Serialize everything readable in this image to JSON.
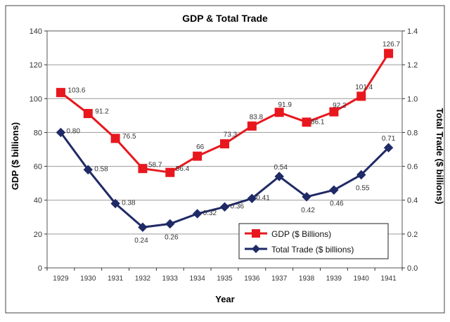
{
  "chart_data": {
    "type": "line",
    "title": "GDP & Total Trade",
    "xlabel": "Year",
    "ylabel": "GDP ($ billions)",
    "y2label": "Total Trade ($ billions)",
    "categories": [
      "1929",
      "1930",
      "1931",
      "1932",
      "1933",
      "1934",
      "1935",
      "1936",
      "1937",
      "1938",
      "1939",
      "1940",
      "1941"
    ],
    "ylim": [
      0,
      140
    ],
    "yticks": [
      "0",
      "20",
      "40",
      "60",
      "80",
      "100",
      "120",
      "140"
    ],
    "y2lim": [
      0,
      1.4
    ],
    "y2ticks": [
      "0.0",
      "0.2",
      "0.4",
      "0.6",
      "0.8",
      "1.0",
      "1.2",
      "1.4"
    ],
    "grid": "horizontal",
    "legend_position": "bottom-right",
    "series": [
      {
        "name": "GDP ($ Billions)",
        "axis": "left",
        "color": "#e8171e",
        "marker": "square",
        "values": [
          103.6,
          91.2,
          76.5,
          58.7,
          56.4,
          66,
          73.3,
          83.8,
          91.9,
          86.1,
          92.2,
          101.4,
          126.7
        ],
        "labels": [
          "103.6",
          "91.2",
          "76.5",
          "58.7",
          "56.4",
          "66",
          "73.3",
          "83.8",
          "91.9",
          "86.1",
          "92.2",
          "101.4",
          "126.7"
        ]
      },
      {
        "name": "Total Trade ($ billions)",
        "axis": "right",
        "color": "#1f2a66",
        "marker": "diamond",
        "values": [
          0.8,
          0.58,
          0.38,
          0.24,
          0.26,
          0.32,
          0.36,
          0.41,
          0.54,
          0.42,
          0.46,
          0.55,
          0.71
        ],
        "labels": [
          "0.80",
          "0.58",
          "0.38",
          "0.24",
          "0.26",
          "0.32",
          "0.36",
          "0.41",
          "0.54",
          "0.42",
          "0.46",
          "0.55",
          "0.71"
        ]
      }
    ]
  }
}
